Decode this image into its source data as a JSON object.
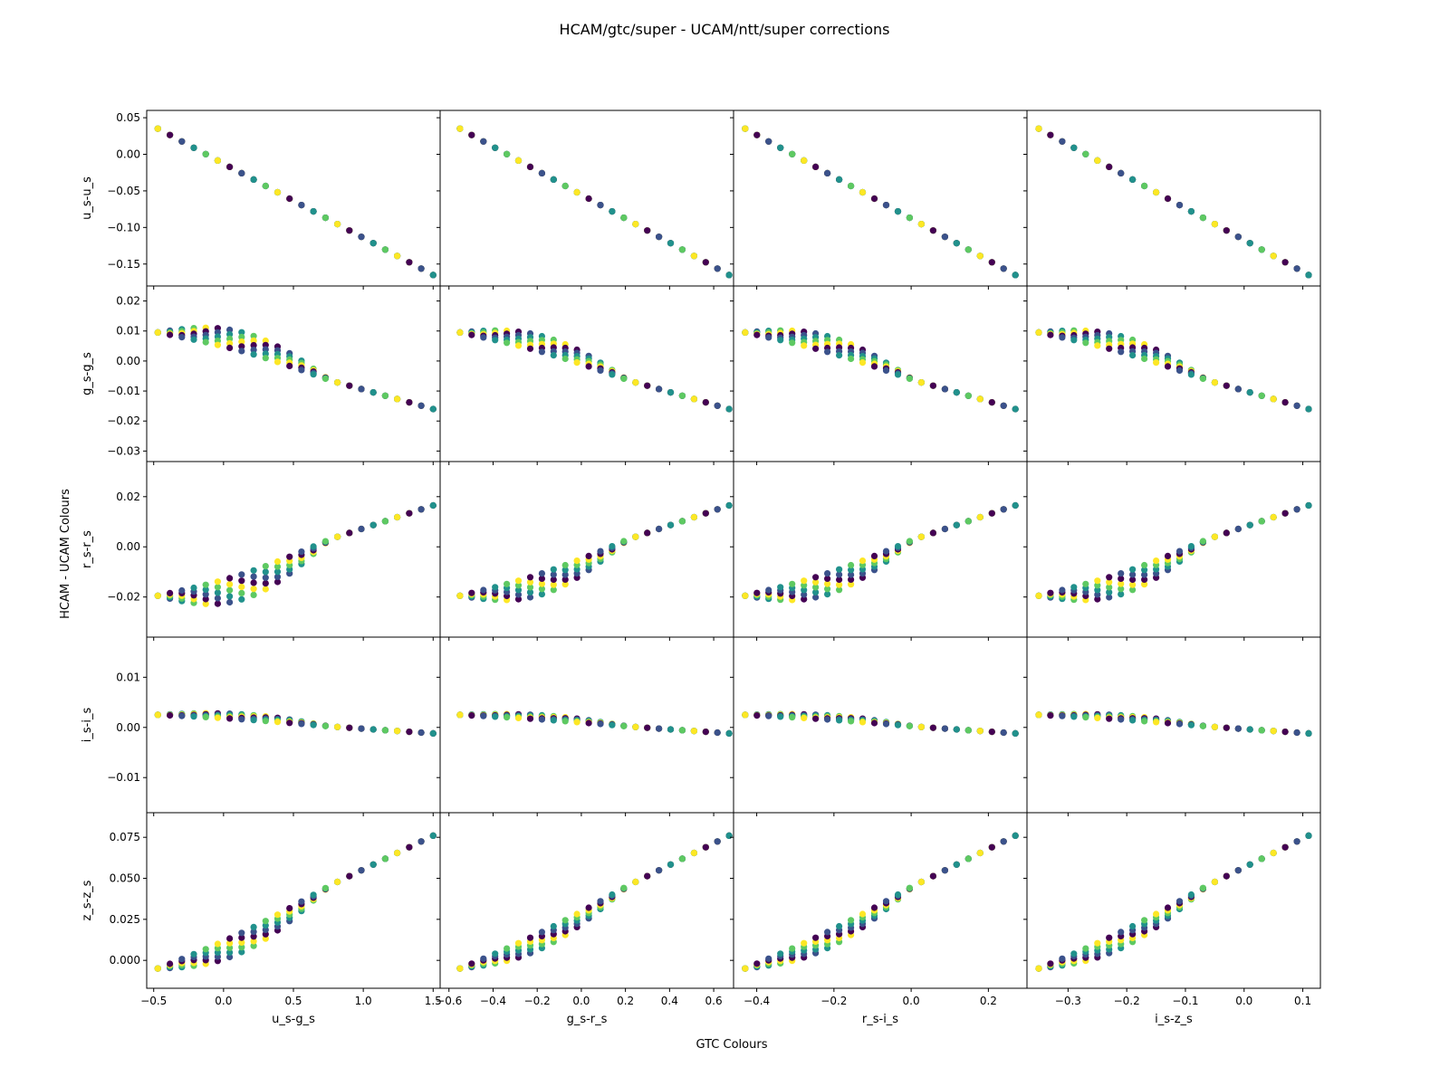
{
  "figure": {
    "title": "HCAM/gtc/super - UCAM/ntt/super corrections",
    "xlabel": "GTC Colours",
    "ylabel": "HCAM - UCAM Colours"
  },
  "colors": {
    "viridis": [
      "#440154",
      "#3b528b",
      "#21918c",
      "#5ec962",
      "#fde725"
    ],
    "axes": "#000000",
    "background": "#ffffff"
  },
  "chart_data": {
    "type": "scatter",
    "columns": [
      {
        "xlabel": "u_s-g_s",
        "xlim": [
          -0.55,
          1.55
        ],
        "xticks": [
          -0.5,
          0.0,
          0.5,
          1.0,
          1.5
        ],
        "xticklabels": [
          "−0.5",
          "0.0",
          "0.5",
          "1.0",
          "1.5"
        ],
        "xmin": -0.47,
        "xmax": 1.5,
        "bend": 0.62
      },
      {
        "xlabel": "g_s-r_s",
        "xlim": [
          -0.64,
          0.69
        ],
        "xticks": [
          -0.6,
          -0.4,
          -0.2,
          0.0,
          0.2,
          0.4,
          0.6
        ],
        "xticklabels": [
          "−0.6",
          "−0.4",
          "−0.2",
          "0.0",
          "0.2",
          "0.4",
          "0.6"
        ],
        "xmin": -0.55,
        "xmax": 0.67,
        "bend": 0.0
      },
      {
        "xlabel": "r_s-i_s",
        "xlim": [
          -0.46,
          0.3
        ],
        "xticks": [
          -0.4,
          -0.2,
          0.0,
          0.2
        ],
        "xticklabels": [
          "−0.4",
          "−0.2",
          "0.0",
          "0.2"
        ],
        "xmin": -0.43,
        "xmax": 0.27,
        "bend": 0.0
      },
      {
        "xlabel": "i_s-z_s",
        "xlim": [
          -0.37,
          0.13
        ],
        "xticks": [
          -0.3,
          -0.2,
          -0.1,
          0.0,
          0.1
        ],
        "xticklabels": [
          "−0.3",
          "−0.2",
          "−0.1",
          "0.0",
          "0.1"
        ],
        "xmin": -0.35,
        "xmax": 0.11,
        "bend": 0.0
      }
    ],
    "rows": [
      {
        "ylabel": "u_s-u_s",
        "ylim": [
          -0.18,
          0.06
        ],
        "yticks": [
          0.05,
          0.0,
          -0.05,
          -0.1,
          -0.15
        ],
        "yticklabels": [
          "0.05",
          "0.00",
          "−0.05",
          "−0.10",
          "−0.15"
        ],
        "ystart": 0.035,
        "yend": -0.165,
        "dip": -0.065
      },
      {
        "ylabel": "g_s-g_s",
        "ylim": [
          -0.0335,
          0.025
        ],
        "yticks": [
          0.02,
          0.01,
          0.0,
          -0.01,
          -0.02,
          -0.03
        ],
        "yticklabels": [
          "0.02",
          "0.01",
          "0.00",
          "−0.01",
          "−0.02",
          "−0.03"
        ],
        "ystart": 0.0095,
        "yend": -0.016,
        "dip": 0.004
      },
      {
        "ylabel": "r_s-r_s",
        "ylim": [
          -0.036,
          0.034
        ],
        "yticks": [
          0.02,
          0.0,
          -0.02
        ],
        "yticklabels": [
          "0.02",
          "0.00",
          "−0.02"
        ],
        "ystart": -0.0195,
        "yend": 0.0165,
        "dip": -0.013
      },
      {
        "ylabel": "i_s-i_s",
        "ylim": [
          -0.017,
          0.018
        ],
        "yticks": [
          0.01,
          0.0,
          -0.01
        ],
        "yticklabels": [
          "0.01",
          "0.00",
          "−0.01"
        ],
        "ystart": 0.0025,
        "yend": -0.0012,
        "dip": 0.0018
      },
      {
        "ylabel": "z_s-z_s",
        "ylim": [
          -0.017,
          0.09
        ],
        "yticks": [
          0.075,
          0.05,
          0.025,
          0.0
        ],
        "yticklabels": [
          "0.075",
          "0.050",
          "0.025",
          "0.000"
        ],
        "ystart": -0.005,
        "yend": 0.076,
        "dip": 0.022
      }
    ],
    "grid": false,
    "legend": "none",
    "colormap": "viridis"
  }
}
